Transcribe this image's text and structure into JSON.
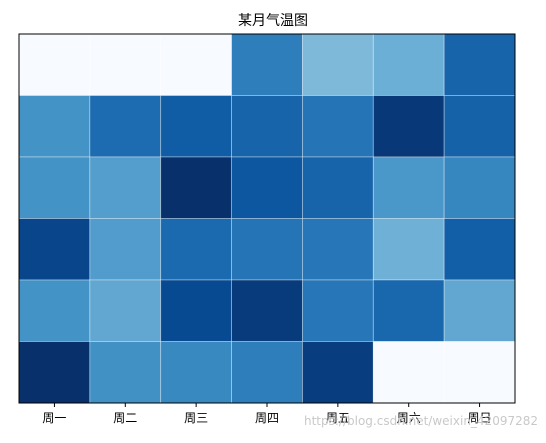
{
  "chart_data": {
    "type": "heatmap",
    "title": "某月气温图",
    "xlabel": "",
    "ylabel": "",
    "x_categories": [
      "周一",
      "周二",
      "周三",
      "周四",
      "周五",
      "周六",
      "周日"
    ],
    "rows": 6,
    "colormap": "Blues",
    "value_range": [
      0,
      1
    ],
    "grid": true,
    "empty_cells": [
      [
        0,
        0
      ],
      [
        0,
        1
      ],
      [
        0,
        2
      ],
      [
        5,
        5
      ],
      [
        5,
        6
      ]
    ],
    "values": [
      [
        0.0,
        0.0,
        0.0,
        0.7,
        0.45,
        0.5,
        0.8
      ],
      [
        0.62,
        0.77,
        0.83,
        0.8,
        0.74,
        0.97,
        0.81
      ],
      [
        0.62,
        0.57,
        1.0,
        0.85,
        0.8,
        0.6,
        0.67
      ],
      [
        0.92,
        0.58,
        0.78,
        0.74,
        0.73,
        0.49,
        0.82
      ],
      [
        0.62,
        0.53,
        0.9,
        0.96,
        0.73,
        0.79,
        0.53
      ],
      [
        1.0,
        0.63,
        0.66,
        0.7,
        0.95,
        0.0,
        0.0
      ]
    ]
  },
  "watermark": {
    "text": "https://blog.csdn.net/weixin_42097282"
  }
}
